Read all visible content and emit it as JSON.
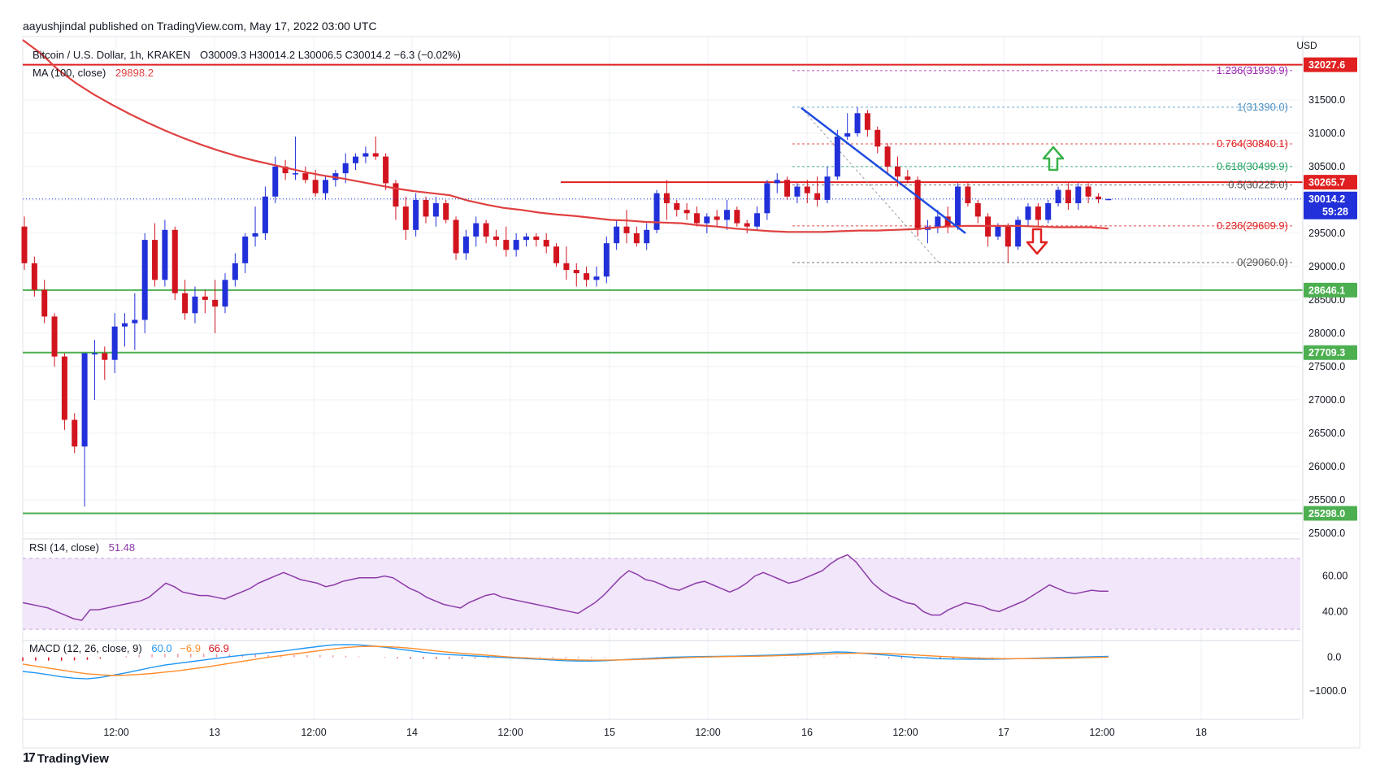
{
  "header": {
    "publisher": "aayushjindal published on TradingView.com, May 17, 2022 03:00 UTC"
  },
  "legend": {
    "symbol": "Bitcoin / U.S. Dollar, 1h, KRAKEN",
    "ohlc": "O30009.3 H30014.2 L30006.5 C30014.2 −6.3 (−0.02%)",
    "ma_label": "MA (100, close)",
    "ma_value": "29898.2",
    "rsi_label": "RSI (14, close)",
    "rsi_value": "51.48",
    "macd_label": "MACD (12, 26, close, 9)",
    "macd_value1": "60.0",
    "macd_value2": "−6.9",
    "macd_value3": "66.9"
  },
  "currency": "USD",
  "brand": "TradingView",
  "colors": {
    "up": "#2130d9",
    "down": "#d2141e",
    "ma": "#e04040",
    "resistance": "#e02020",
    "support": "#4caf50",
    "trendline": "#1f4be0",
    "rsi": "#8e3ca8",
    "macd": "#2196f3",
    "signal": "#ff8c2a"
  },
  "chart_data": {
    "type": "candlestick",
    "x_ticks": [
      "12:00",
      "13",
      "12:00",
      "14",
      "12:00",
      "15",
      "12:00",
      "16",
      "12:00",
      "17",
      "12:00",
      "18"
    ],
    "y_ticks": [
      "31500.0",
      "31000.0",
      "30500.0",
      "30000.0",
      "29500.0",
      "29000.0",
      "28500.0",
      "28000.0",
      "27500.0",
      "27000.0",
      "26500.0",
      "26000.0",
      "25500.0",
      "25000.0"
    ],
    "ylim": [
      24950,
      32450
    ],
    "price_tags": [
      {
        "label": "32027.6",
        "value": 32027.6,
        "kind": "resistance"
      },
      {
        "label": "30265.7",
        "value": 30265.7,
        "kind": "resistance"
      },
      {
        "label": "28646.1",
        "value": 28646.1,
        "kind": "support"
      },
      {
        "label": "27709.3",
        "value": 27709.3,
        "kind": "support"
      },
      {
        "label": "25298.0",
        "value": 25298.0,
        "kind": "support"
      }
    ],
    "last_price": {
      "label": "30014.2",
      "countdown": "59:28",
      "value": 30014.2
    },
    "fib_levels": [
      {
        "ratio": "1.236",
        "label": "1.236(31939.9)",
        "value": 31939.9,
        "color": "#9c27b0"
      },
      {
        "ratio": "1",
        "label": "1(31390.0)",
        "value": 31390.0,
        "color": "#4a90c2"
      },
      {
        "ratio": "0.764",
        "label": "0.764(30840.1)",
        "value": 30840.1,
        "color": "#e02020"
      },
      {
        "ratio": "0.618",
        "label": "0.618(30499.9)",
        "value": 30499.9,
        "color": "#20a060"
      },
      {
        "ratio": "0.5",
        "label": "0.5(30225.0)",
        "value": 30225.0,
        "color": "#555555"
      },
      {
        "ratio": "0.236",
        "label": "0.236(29609.9)",
        "value": 29609.9,
        "color": "#e02020"
      },
      {
        "ratio": "0",
        "label": "0(29060.0)",
        "value": 29060.0,
        "color": "#555555"
      }
    ],
    "candles": [
      {
        "o": 29600,
        "h": 29750,
        "l": 28950,
        "c": 29050
      },
      {
        "o": 29050,
        "h": 29150,
        "l": 28550,
        "c": 28650
      },
      {
        "o": 28650,
        "h": 28800,
        "l": 28150,
        "c": 28250
      },
      {
        "o": 28250,
        "h": 28300,
        "l": 27500,
        "c": 27650
      },
      {
        "o": 27650,
        "h": 27700,
        "l": 26550,
        "c": 26700
      },
      {
        "o": 26700,
        "h": 26800,
        "l": 26200,
        "c": 26300
      },
      {
        "o": 26300,
        "h": 27700,
        "l": 25400,
        "c": 27700
      },
      {
        "o": 27700,
        "h": 27900,
        "l": 27000,
        "c": 27700
      },
      {
        "o": 27700,
        "h": 27800,
        "l": 27300,
        "c": 27600
      },
      {
        "o": 27600,
        "h": 28300,
        "l": 27400,
        "c": 28100
      },
      {
        "o": 28100,
        "h": 28300,
        "l": 27800,
        "c": 28150
      },
      {
        "o": 28150,
        "h": 28600,
        "l": 27750,
        "c": 28200
      },
      {
        "o": 28200,
        "h": 29500,
        "l": 28000,
        "c": 29400
      },
      {
        "o": 29400,
        "h": 29650,
        "l": 28700,
        "c": 28800
      },
      {
        "o": 28800,
        "h": 29700,
        "l": 28700,
        "c": 29550
      },
      {
        "o": 29550,
        "h": 29600,
        "l": 28500,
        "c": 28600
      },
      {
        "o": 28600,
        "h": 28800,
        "l": 28200,
        "c": 28300
      },
      {
        "o": 28300,
        "h": 28700,
        "l": 28150,
        "c": 28550
      },
      {
        "o": 28550,
        "h": 28650,
        "l": 28300,
        "c": 28500
      },
      {
        "o": 28500,
        "h": 28800,
        "l": 28000,
        "c": 28400
      },
      {
        "o": 28400,
        "h": 28900,
        "l": 28300,
        "c": 28800
      },
      {
        "o": 28800,
        "h": 29200,
        "l": 28700,
        "c": 29050
      },
      {
        "o": 29050,
        "h": 29500,
        "l": 28900,
        "c": 29450
      },
      {
        "o": 29450,
        "h": 29900,
        "l": 29300,
        "c": 29500
      },
      {
        "o": 29500,
        "h": 30200,
        "l": 29400,
        "c": 30050
      },
      {
        "o": 30050,
        "h": 30650,
        "l": 29950,
        "c": 30500
      },
      {
        "o": 30500,
        "h": 30600,
        "l": 30300,
        "c": 30400
      },
      {
        "o": 30400,
        "h": 30950,
        "l": 30300,
        "c": 30400
      },
      {
        "o": 30400,
        "h": 30500,
        "l": 30250,
        "c": 30300
      },
      {
        "o": 30300,
        "h": 30450,
        "l": 30050,
        "c": 30100
      },
      {
        "o": 30100,
        "h": 30350,
        "l": 30000,
        "c": 30300
      },
      {
        "o": 30300,
        "h": 30450,
        "l": 30200,
        "c": 30400
      },
      {
        "o": 30400,
        "h": 30700,
        "l": 30250,
        "c": 30550
      },
      {
        "o": 30550,
        "h": 30700,
        "l": 30450,
        "c": 30650
      },
      {
        "o": 30650,
        "h": 30800,
        "l": 30550,
        "c": 30700
      },
      {
        "o": 30700,
        "h": 30950,
        "l": 30600,
        "c": 30650
      },
      {
        "o": 30650,
        "h": 30700,
        "l": 30150,
        "c": 30250
      },
      {
        "o": 30250,
        "h": 30300,
        "l": 29700,
        "c": 29900
      },
      {
        "o": 29900,
        "h": 30050,
        "l": 29400,
        "c": 29550
      },
      {
        "o": 29550,
        "h": 30100,
        "l": 29450,
        "c": 30000
      },
      {
        "o": 30000,
        "h": 30050,
        "l": 29650,
        "c": 29750
      },
      {
        "o": 29750,
        "h": 30050,
        "l": 29600,
        "c": 29950
      },
      {
        "o": 29950,
        "h": 30000,
        "l": 29650,
        "c": 29700
      },
      {
        "o": 29700,
        "h": 29750,
        "l": 29100,
        "c": 29200
      },
      {
        "o": 29200,
        "h": 29550,
        "l": 29100,
        "c": 29450
      },
      {
        "o": 29450,
        "h": 29750,
        "l": 29300,
        "c": 29650
      },
      {
        "o": 29650,
        "h": 29700,
        "l": 29350,
        "c": 29450
      },
      {
        "o": 29450,
        "h": 29550,
        "l": 29300,
        "c": 29400
      },
      {
        "o": 29400,
        "h": 29600,
        "l": 29150,
        "c": 29250
      },
      {
        "o": 29250,
        "h": 29500,
        "l": 29150,
        "c": 29400
      },
      {
        "o": 29400,
        "h": 29500,
        "l": 29300,
        "c": 29450
      },
      {
        "o": 29450,
        "h": 29500,
        "l": 29300,
        "c": 29400
      },
      {
        "o": 29400,
        "h": 29500,
        "l": 29200,
        "c": 29300
      },
      {
        "o": 29300,
        "h": 29350,
        "l": 29000,
        "c": 29050
      },
      {
        "o": 29050,
        "h": 29300,
        "l": 28800,
        "c": 28950
      },
      {
        "o": 28950,
        "h": 29050,
        "l": 28700,
        "c": 28900
      },
      {
        "o": 28900,
        "h": 29000,
        "l": 28700,
        "c": 28800
      },
      {
        "o": 28800,
        "h": 29000,
        "l": 28700,
        "c": 28850
      },
      {
        "o": 28850,
        "h": 29450,
        "l": 28750,
        "c": 29350
      },
      {
        "o": 29350,
        "h": 29700,
        "l": 29250,
        "c": 29600
      },
      {
        "o": 29600,
        "h": 29850,
        "l": 29350,
        "c": 29500
      },
      {
        "o": 29500,
        "h": 29600,
        "l": 29300,
        "c": 29350
      },
      {
        "o": 29350,
        "h": 29650,
        "l": 29250,
        "c": 29550
      },
      {
        "o": 29550,
        "h": 30150,
        "l": 29500,
        "c": 30100
      },
      {
        "o": 30100,
        "h": 30300,
        "l": 29700,
        "c": 29950
      },
      {
        "o": 29950,
        "h": 30000,
        "l": 29750,
        "c": 29850
      },
      {
        "o": 29850,
        "h": 29950,
        "l": 29700,
        "c": 29800
      },
      {
        "o": 29800,
        "h": 29900,
        "l": 29600,
        "c": 29650
      },
      {
        "o": 29650,
        "h": 29800,
        "l": 29500,
        "c": 29750
      },
      {
        "o": 29750,
        "h": 29850,
        "l": 29600,
        "c": 29700
      },
      {
        "o": 29700,
        "h": 30000,
        "l": 29550,
        "c": 29850
      },
      {
        "o": 29850,
        "h": 29900,
        "l": 29600,
        "c": 29650
      },
      {
        "o": 29650,
        "h": 29700,
        "l": 29500,
        "c": 29600
      },
      {
        "o": 29600,
        "h": 29900,
        "l": 29550,
        "c": 29800
      },
      {
        "o": 29800,
        "h": 30300,
        "l": 29700,
        "c": 30250
      },
      {
        "o": 30250,
        "h": 30400,
        "l": 30100,
        "c": 30300
      },
      {
        "o": 30300,
        "h": 30350,
        "l": 30000,
        "c": 30050
      },
      {
        "o": 30050,
        "h": 30250,
        "l": 29950,
        "c": 30200
      },
      {
        "o": 30200,
        "h": 30300,
        "l": 29950,
        "c": 30100
      },
      {
        "o": 30100,
        "h": 30350,
        "l": 29900,
        "c": 30000
      },
      {
        "o": 30000,
        "h": 30500,
        "l": 29950,
        "c": 30350
      },
      {
        "o": 30350,
        "h": 31050,
        "l": 30300,
        "c": 30950
      },
      {
        "o": 30950,
        "h": 31300,
        "l": 30900,
        "c": 31000
      },
      {
        "o": 31000,
        "h": 31390,
        "l": 30950,
        "c": 31300
      },
      {
        "o": 31300,
        "h": 31350,
        "l": 30950,
        "c": 31050
      },
      {
        "o": 31050,
        "h": 31100,
        "l": 30700,
        "c": 30800
      },
      {
        "o": 30800,
        "h": 30850,
        "l": 30400,
        "c": 30500
      },
      {
        "o": 30500,
        "h": 30650,
        "l": 30200,
        "c": 30350
      },
      {
        "o": 30350,
        "h": 30450,
        "l": 30250,
        "c": 30300
      },
      {
        "o": 30300,
        "h": 30350,
        "l": 29450,
        "c": 29550
      },
      {
        "o": 29550,
        "h": 29700,
        "l": 29350,
        "c": 29600
      },
      {
        "o": 29600,
        "h": 29850,
        "l": 29500,
        "c": 29750
      },
      {
        "o": 29750,
        "h": 29900,
        "l": 29500,
        "c": 29600
      },
      {
        "o": 29600,
        "h": 30250,
        "l": 29550,
        "c": 30200
      },
      {
        "o": 30200,
        "h": 30250,
        "l": 29900,
        "c": 29950
      },
      {
        "o": 29950,
        "h": 30000,
        "l": 29650,
        "c": 29750
      },
      {
        "o": 29750,
        "h": 29800,
        "l": 29300,
        "c": 29450
      },
      {
        "o": 29450,
        "h": 29650,
        "l": 29400,
        "c": 29600
      },
      {
        "o": 29600,
        "h": 29650,
        "l": 29060,
        "c": 29300
      },
      {
        "o": 29300,
        "h": 29750,
        "l": 29250,
        "c": 29700
      },
      {
        "o": 29700,
        "h": 29950,
        "l": 29600,
        "c": 29900
      },
      {
        "o": 29900,
        "h": 29950,
        "l": 29600,
        "c": 29700
      },
      {
        "o": 29700,
        "h": 30000,
        "l": 29650,
        "c": 29950
      },
      {
        "o": 29950,
        "h": 30200,
        "l": 29900,
        "c": 30150
      },
      {
        "o": 30150,
        "h": 30250,
        "l": 29850,
        "c": 29950
      },
      {
        "o": 29950,
        "h": 30250,
        "l": 29850,
        "c": 30200
      },
      {
        "o": 30200,
        "h": 30250,
        "l": 29950,
        "c": 30050
      },
      {
        "o": 30050,
        "h": 30100,
        "l": 29950,
        "c": 30009
      },
      {
        "o": 30009,
        "h": 30014,
        "l": 30006,
        "c": 30014
      }
    ],
    "ma100": [
      32400,
      32200,
      31950,
      31750,
      31580,
      31430,
      31290,
      31160,
      31040,
      30930,
      30830,
      30740,
      30660,
      30590,
      30530,
      30470,
      30410,
      30360,
      30320,
      30270,
      30220,
      30170,
      30130,
      30100,
      30070,
      29990,
      29930,
      29880,
      29850,
      29810,
      29780,
      29760,
      29730,
      29700,
      29690,
      29670,
      29660,
      29650,
      29620,
      29600,
      29570,
      29550,
      29530,
      29520,
      29520,
      29520,
      29530,
      29540,
      29540,
      29550,
      29560,
      29580,
      29600,
      29610,
      29610,
      29610,
      29610,
      29600,
      29590,
      29590,
      29590,
      29570
    ],
    "rsi_ticks": [
      "60.00",
      "40.00"
    ],
    "rsi": [
      45,
      44,
      43,
      42,
      40,
      38,
      36,
      35,
      41,
      41,
      42,
      43,
      44,
      45,
      46,
      48,
      52,
      56,
      54,
      51,
      50,
      49,
      49,
      48,
      47,
      49,
      51,
      53,
      56,
      58,
      60,
      62,
      60,
      58,
      57,
      56,
      54,
      55,
      57,
      58,
      59,
      59,
      59,
      60,
      59,
      56,
      53,
      51,
      48,
      46,
      44,
      43,
      42,
      45,
      47,
      49,
      50,
      48,
      47,
      46,
      45,
      44,
      43,
      42,
      41,
      40,
      39,
      42,
      45,
      49,
      54,
      59,
      63,
      61,
      58,
      57,
      55,
      53,
      52,
      54,
      56,
      57,
      55,
      53,
      51,
      53,
      56,
      60,
      62,
      60,
      58,
      56,
      57,
      59,
      61,
      63,
      67,
      70,
      72,
      68,
      62,
      56,
      52,
      49,
      47,
      45,
      44,
      40,
      38,
      38,
      41,
      43,
      45,
      44,
      43,
      41,
      40,
      42,
      44,
      46,
      49,
      52,
      55,
      53,
      51,
      50,
      51,
      52,
      51.5,
      51.48
    ],
    "macd_ticks": [
      "0.0",
      "−1000.0"
    ],
    "macd": [
      -420,
      -460,
      -520,
      -580,
      -620,
      -640,
      -600,
      -530,
      -460,
      -380,
      -300,
      -230,
      -180,
      -130,
      -80,
      -30,
      20,
      60,
      100,
      140,
      180,
      230,
      280,
      330,
      370,
      380,
      370,
      340,
      300,
      250,
      200,
      150,
      110,
      80,
      60,
      40,
      20,
      0,
      -20,
      -40,
      -60,
      -80,
      -100,
      -110,
      -110,
      -100,
      -80,
      -60,
      -40,
      -20,
      0,
      10,
      20,
      25,
      30,
      35,
      45,
      55,
      65,
      80,
      100,
      120,
      140,
      160,
      150,
      120,
      90,
      60,
      30,
      0,
      -20,
      -40,
      -50,
      -55,
      -55,
      -55,
      -50,
      -40,
      -30,
      -20,
      -10,
      0,
      10,
      20,
      30
    ],
    "macd_signal": [
      -200,
      -260,
      -320,
      -380,
      -440,
      -490,
      -520,
      -540,
      -530,
      -510,
      -480,
      -440,
      -400,
      -350,
      -300,
      -240,
      -180,
      -120,
      -60,
      0,
      50,
      100,
      150,
      200,
      250,
      290,
      320,
      330,
      320,
      300,
      270,
      230,
      190,
      150,
      120,
      90,
      60,
      30,
      0,
      -20,
      -40,
      -55,
      -70,
      -80,
      -85,
      -85,
      -80,
      -70,
      -60,
      -45,
      -30,
      -15,
      0,
      10,
      20,
      25,
      30,
      35,
      45,
      55,
      65,
      80,
      95,
      110,
      120,
      125,
      120,
      110,
      90,
      70,
      50,
      30,
      10,
      -10,
      -25,
      -35,
      -40,
      -40,
      -38,
      -35,
      -30,
      -25,
      -15,
      -5,
      5
    ]
  }
}
